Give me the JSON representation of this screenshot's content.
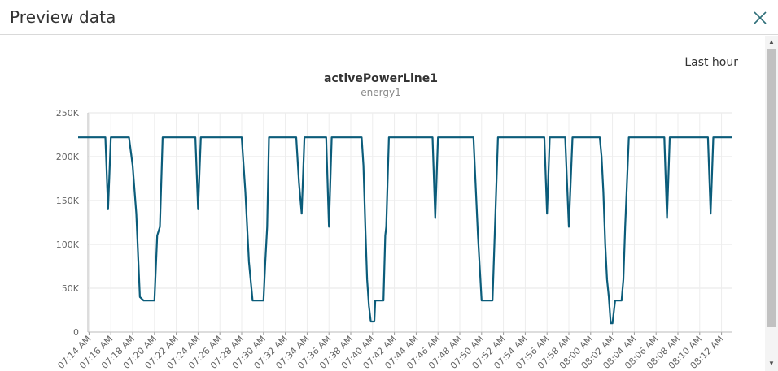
{
  "dialog": {
    "title": "Preview data",
    "close_icon": "close-icon"
  },
  "chart_header": {
    "time_range": "Last hour",
    "title": "activePowerLine1",
    "subtitle": "energy1"
  },
  "colors": {
    "series": "#0b5c7a",
    "grid": "#e6e6e6",
    "axis_text": "#666666",
    "close_icon": "#2f6f79"
  },
  "chart_data": {
    "type": "line",
    "title": "activePowerLine1",
    "subtitle": "energy1",
    "xlabel": "",
    "ylabel": "",
    "ylim": [
      0,
      250000
    ],
    "y_ticks": [
      0,
      50000,
      100000,
      150000,
      200000,
      250000
    ],
    "y_tick_labels": [
      "0",
      "50K",
      "100K",
      "150K",
      "200K",
      "250K"
    ],
    "x_ticks": [
      "07:14",
      "07:16",
      "07:18",
      "07:20",
      "07:22",
      "07:24",
      "07:26",
      "07:28",
      "07:30",
      "07:32",
      "07:34",
      "07:36",
      "07:38",
      "07:40",
      "07:42",
      "07:44",
      "07:46",
      "07:48",
      "07:50",
      "07:52",
      "07:54",
      "07:56",
      "07:58",
      "08:00",
      "08:02",
      "08:04",
      "08:06",
      "08:08",
      "08:10",
      "08:12"
    ],
    "x_tick_labels": [
      "07:14 AM",
      "07:16 AM",
      "07:18 AM",
      "07:20 AM",
      "07:22 AM",
      "07:24 AM",
      "07:26 AM",
      "07:28 AM",
      "07:30 AM",
      "07:32 AM",
      "07:34 AM",
      "07:36 AM",
      "07:38 AM",
      "07:40 AM",
      "07:42 AM",
      "07:44 AM",
      "07:46 AM",
      "07:48 AM",
      "07:50 AM",
      "07:52 AM",
      "07:54 AM",
      "07:56 AM",
      "07:58 AM",
      "08:00 AM",
      "08:02 AM",
      "08:04 AM",
      "08:06 AM",
      "08:08 AM",
      "08:10 AM",
      "08:12 AM"
    ],
    "xlim": [
      "07:13",
      "08:13"
    ],
    "grid": true,
    "legend": "none",
    "series": [
      {
        "x": [
          "07:13",
          "07:14",
          "07:15",
          "07:15:30",
          "07:15:45",
          "07:16",
          "07:16:20",
          "07:16:40",
          "07:17",
          "07:17:40",
          "07:18",
          "07:18:20",
          "07:18:40",
          "07:19",
          "07:19:30",
          "07:20",
          "07:20:15",
          "07:20:30",
          "07:20:45",
          "07:21",
          "07:22",
          "07:23",
          "07:23:45",
          "07:24",
          "07:24:15",
          "07:24:30",
          "07:25",
          "07:26",
          "07:27",
          "07:28",
          "07:28:20",
          "07:28:40",
          "07:29",
          "07:29:20",
          "07:29:40",
          "07:30",
          "07:30:10",
          "07:30:20",
          "07:30:30",
          "07:30:50",
          "07:31",
          "07:32",
          "07:33",
          "07:33:15",
          "07:33:30",
          "07:33:45",
          "07:34",
          "07:34:30",
          "07:35",
          "07:35:45",
          "07:36",
          "07:36:15",
          "07:37",
          "07:38",
          "07:39",
          "07:39:10",
          "07:39:20",
          "07:39:30",
          "07:39:40",
          "07:39:50",
          "07:40",
          "07:40:10",
          "07:40:15",
          "07:40:20",
          "07:40:50",
          "07:41",
          "07:41:10",
          "07:41:15",
          "07:41:30",
          "07:41:45",
          "07:42",
          "07:42:15",
          "07:43",
          "07:44",
          "07:45",
          "07:45:30",
          "07:45:45",
          "07:46",
          "07:46:30",
          "07:47",
          "07:48",
          "07:49",
          "07:49:15",
          "07:49:40",
          "07:50",
          "07:50:20",
          "07:50:40",
          "07:51",
          "07:51:30",
          "07:52",
          "07:53",
          "07:54",
          "07:55",
          "07:55:45",
          "07:56",
          "07:56:15",
          "07:56:40",
          "07:57",
          "07:57:20",
          "07:57:40",
          "07:58",
          "07:58:20",
          "07:58:40",
          "07:59",
          "08:00",
          "08:00:30",
          "08:00:50",
          "08:01",
          "08:01:10",
          "08:01:20",
          "08:01:30",
          "08:01:40",
          "08:01:50",
          "08:02",
          "08:02:15",
          "08:02:30",
          "08:02:40",
          "08:02:50",
          "08:03",
          "08:03:10",
          "08:03:30",
          "08:04",
          "08:04:30",
          "08:05",
          "08:06",
          "08:06:45",
          "08:07",
          "08:07:15",
          "08:07:30",
          "08:08",
          "08:09",
          "08:10",
          "08:10:30",
          "08:10:45",
          "08:11",
          "08:11:15",
          "08:12",
          "08:13"
        ],
        "y": [
          222000,
          222000,
          222000,
          222000,
          140000,
          222000,
          222000,
          222000,
          222000,
          222000,
          190000,
          135000,
          40000,
          36000,
          36000,
          36000,
          110000,
          120000,
          222000,
          222000,
          222000,
          222000,
          222000,
          140000,
          222000,
          222000,
          222000,
          222000,
          222000,
          222000,
          160000,
          80000,
          36000,
          36000,
          36000,
          36000,
          80000,
          120000,
          222000,
          222000,
          222000,
          222000,
          222000,
          170000,
          135000,
          222000,
          222000,
          222000,
          222000,
          222000,
          120000,
          222000,
          222000,
          222000,
          222000,
          190000,
          120000,
          60000,
          30000,
          12000,
          12000,
          12000,
          36000,
          36000,
          36000,
          36000,
          110000,
          120000,
          222000,
          222000,
          222000,
          222000,
          222000,
          222000,
          222000,
          222000,
          130000,
          222000,
          222000,
          222000,
          222000,
          222000,
          222000,
          110000,
          36000,
          36000,
          36000,
          36000,
          222000,
          222000,
          222000,
          222000,
          222000,
          222000,
          135000,
          222000,
          222000,
          222000,
          222000,
          222000,
          120000,
          222000,
          222000,
          222000,
          222000,
          222000,
          222000,
          200000,
          160000,
          100000,
          60000,
          40000,
          10000,
          10000,
          36000,
          36000,
          36000,
          36000,
          60000,
          120000,
          222000,
          222000,
          222000,
          222000,
          222000,
          222000,
          130000,
          222000,
          222000,
          222000,
          222000,
          222000,
          222000,
          222000,
          135000,
          222000,
          222000,
          222000
        ]
      }
    ]
  }
}
